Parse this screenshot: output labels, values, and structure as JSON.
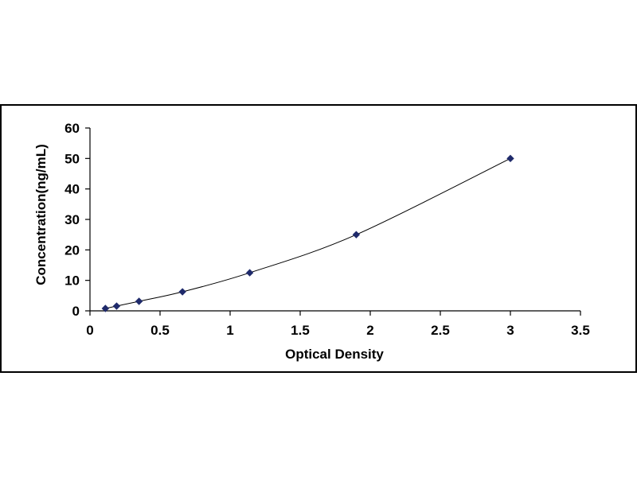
{
  "chart_data": {
    "type": "scatter",
    "title": "",
    "xlabel": "Optical Density",
    "ylabel": "Concentration(ng/mL)",
    "xlim": [
      0,
      3.5
    ],
    "ylim": [
      0,
      60
    ],
    "x_ticks": [
      0,
      0.5,
      1,
      1.5,
      2,
      2.5,
      3,
      3.5
    ],
    "x_tick_labels": [
      "0",
      "0.5",
      "1",
      "1.5",
      "2",
      "2.5",
      "3",
      "3.5"
    ],
    "y_ticks": [
      0,
      10,
      20,
      30,
      40,
      50,
      60
    ],
    "y_tick_labels": [
      "0",
      "10",
      "20",
      "30",
      "40",
      "50",
      "60"
    ],
    "grid": false,
    "legend": "none",
    "series": [
      {
        "x": [
          0.11,
          0.19,
          0.35,
          0.66,
          1.14,
          1.9,
          3.0
        ],
        "y": [
          0.78,
          1.56,
          3.13,
          6.25,
          12.5,
          25,
          50
        ],
        "marker": "diamond",
        "color": "#1f2a6b",
        "trendline": "smooth"
      }
    ]
  }
}
